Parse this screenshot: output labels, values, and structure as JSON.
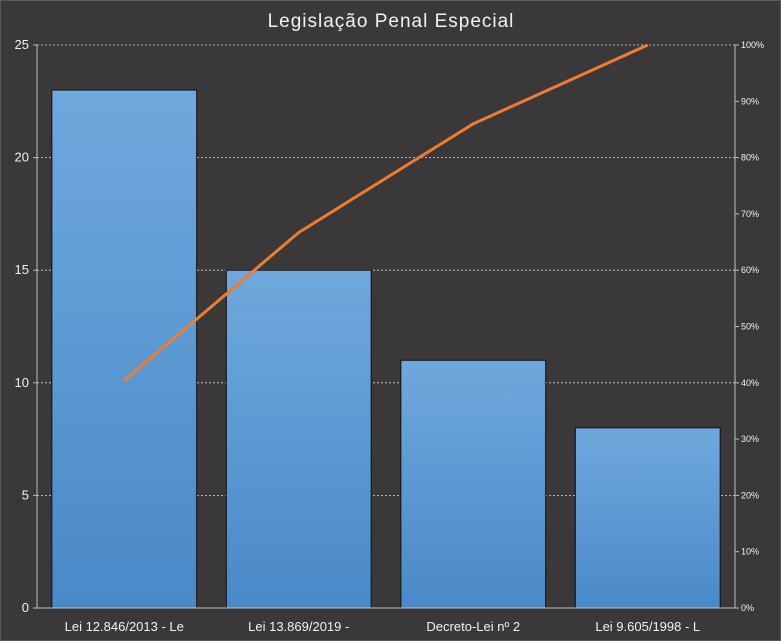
{
  "chart_data": {
    "type": "bar",
    "title": "Legislação Penal Especial",
    "categories": [
      "Lei 12.846/2013 - Le",
      "Lei 13.869/2019 -",
      "Decreto-Lei nº 2",
      "Lei 9.605/1998 - L"
    ],
    "series": [
      {
        "values": [
          23,
          15,
          11,
          8
        ],
        "color": "#5b9bd5"
      },
      {
        "type": "line",
        "axis": "right",
        "values": [
          40.4,
          66.7,
          86.0,
          100
        ],
        "color": "#ed7d31"
      }
    ],
    "ylim": [
      0,
      25
    ],
    "y_ticks": [
      "0",
      "5",
      "10",
      "15",
      "20",
      "25"
    ],
    "y2lim": [
      0,
      100
    ],
    "y2_ticks": [
      "0%",
      "10%",
      "20%",
      "30%",
      "40%",
      "50%",
      "60%",
      "70%",
      "80%",
      "90%",
      "100%"
    ],
    "grid": true,
    "colors": {
      "background": "#3a3838",
      "bar": "#5b9bd5",
      "line": "#ed7d31",
      "text": "#f2f2f2",
      "grid": "#d9d9d9"
    }
  }
}
